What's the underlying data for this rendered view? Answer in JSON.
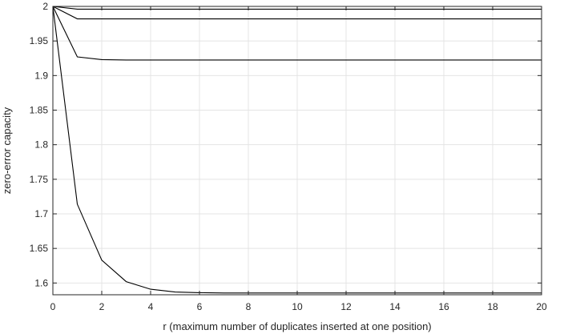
{
  "chart_data": {
    "type": "line",
    "title": "",
    "xlabel": "r  (maximum number of duplicates inserted at one position)",
    "ylabel": "zero-error capacity",
    "xlim": [
      0,
      20
    ],
    "ylim": [
      1.583,
      2.0
    ],
    "xticks": [
      0,
      2,
      4,
      6,
      8,
      10,
      12,
      14,
      16,
      18,
      20
    ],
    "yticks": [
      1.6,
      1.65,
      1.7,
      1.75,
      1.8,
      1.85,
      1.9,
      1.95,
      2
    ],
    "xtick_labels": [
      "0",
      "2",
      "4",
      "6",
      "8",
      "10",
      "12",
      "14",
      "16",
      "18",
      "20"
    ],
    "ytick_labels": [
      "1.6",
      "1.65",
      "1.7",
      "1.75",
      "1.8",
      "1.85",
      "1.9",
      "1.95",
      "2"
    ],
    "grid": true,
    "legend": "none",
    "line_color": "#000000",
    "grid_color": "#e4e4e4",
    "series": [
      {
        "x": [
          0,
          1,
          2,
          3,
          4,
          5,
          6,
          7,
          8,
          9,
          10,
          11,
          12,
          13,
          14,
          15,
          16,
          17,
          18,
          19,
          20
        ],
        "values": [
          2.0,
          1.996,
          1.996,
          1.996,
          1.996,
          1.996,
          1.996,
          1.996,
          1.996,
          1.996,
          1.996,
          1.996,
          1.996,
          1.996,
          1.996,
          1.996,
          1.996,
          1.996,
          1.996,
          1.996,
          1.996
        ]
      },
      {
        "x": [
          0,
          1,
          2,
          3,
          4,
          5,
          6,
          7,
          8,
          9,
          10,
          11,
          12,
          13,
          14,
          15,
          16,
          17,
          18,
          19,
          20
        ],
        "values": [
          2.0,
          1.982,
          1.982,
          1.982,
          1.982,
          1.982,
          1.982,
          1.982,
          1.982,
          1.982,
          1.982,
          1.982,
          1.982,
          1.982,
          1.982,
          1.982,
          1.982,
          1.982,
          1.982,
          1.982,
          1.982
        ]
      },
      {
        "x": [
          0,
          1,
          2,
          3,
          4,
          5,
          6,
          7,
          8,
          9,
          10,
          11,
          12,
          13,
          14,
          15,
          16,
          17,
          18,
          19,
          20
        ],
        "values": [
          2.0,
          1.927,
          1.923,
          1.9225,
          1.9225,
          1.9225,
          1.9225,
          1.9225,
          1.9225,
          1.9225,
          1.9225,
          1.9225,
          1.9225,
          1.9225,
          1.9225,
          1.9225,
          1.9225,
          1.9225,
          1.9225,
          1.9225,
          1.9225
        ]
      },
      {
        "x": [
          0,
          1,
          2,
          3,
          4,
          5,
          6,
          7,
          8,
          9,
          10,
          11,
          12,
          13,
          14,
          15,
          16,
          17,
          18,
          19,
          20
        ],
        "values": [
          2.0,
          1.714,
          1.633,
          1.602,
          1.591,
          1.587,
          1.586,
          1.5855,
          1.5855,
          1.5855,
          1.5855,
          1.5855,
          1.5855,
          1.5855,
          1.5855,
          1.5855,
          1.5855,
          1.5855,
          1.5855,
          1.5855,
          1.5855
        ]
      }
    ]
  }
}
